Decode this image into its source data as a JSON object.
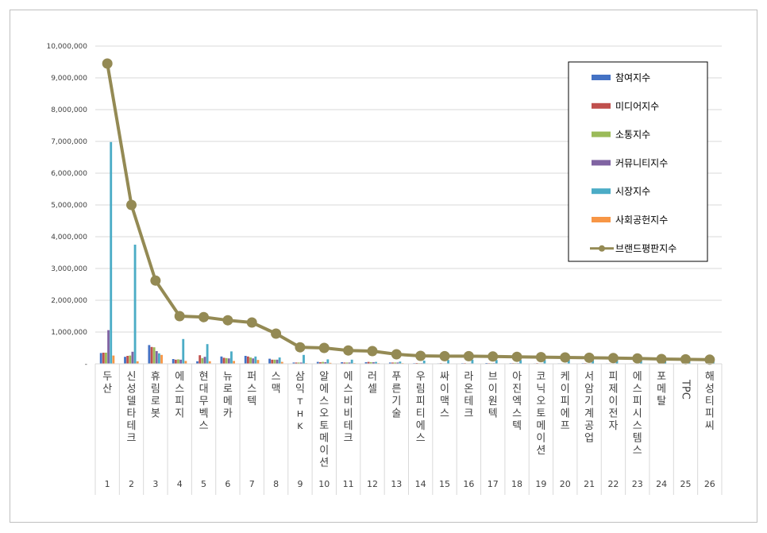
{
  "chart_data": {
    "type": "bar",
    "title": "",
    "xlabel": "",
    "ylabel": "",
    "ylim": [
      0,
      10000000
    ],
    "yticks": [
      "-",
      "1,000,000",
      "2,000,000",
      "3,000,000",
      "4,000,000",
      "5,000,000",
      "6,000,000",
      "7,000,000",
      "8,000,000",
      "9,000,000",
      "10,000,000"
    ],
    "grid": true,
    "legend_position": "top-right",
    "categories": [
      "두산",
      "신성델타테크",
      "휴림로봇",
      "에스피지",
      "현대무벡스",
      "뉴로메카",
      "퍼스텍",
      "스맥",
      "삼익THK",
      "알에스오토메이션",
      "에스비비테크",
      "러셀",
      "푸른기술",
      "우림피티에스",
      "싸이맥스",
      "라온테크",
      "브이원텍",
      "아진엑스텍",
      "코닉오토메이션",
      "케이피에프",
      "서암기계공업",
      "피제이전자",
      "에스피시스템스",
      "포메탈",
      "TPC",
      "해성티피씨"
    ],
    "category_labels": [
      "두산",
      "신성델타테크",
      "휴림로봇",
      "에스피지",
      "현대무벡스",
      "뉴로메카",
      "퍼스텍",
      "스맥",
      "삼익ᴛʜᴋ",
      "알에스오토메이션",
      "에스비비테크",
      "러셀",
      "푸른기술",
      "우림피티에스",
      "싸이맥스",
      "라온테크",
      "브이원텍",
      "아진엑스텍",
      "코닉오토메이션",
      "케이피에프",
      "서암기계공업",
      "피제이전자",
      "에스피시스템스",
      "포메탈",
      "TPC",
      "해성티피씨"
    ],
    "ranks": [
      "1",
      "2",
      "3",
      "4",
      "5",
      "6",
      "7",
      "8",
      "9",
      "10",
      "11",
      "12",
      "13",
      "14",
      "15",
      "16",
      "17",
      "18",
      "19",
      "20",
      "21",
      "22",
      "23",
      "24",
      "25",
      "26"
    ],
    "series": [
      {
        "name": "참여지수",
        "kind": "bar",
        "color": "#4472c4",
        "values": [
          340000,
          220000,
          590000,
          150000,
          80000,
          230000,
          250000,
          160000,
          40000,
          60000,
          50000,
          50000,
          40000,
          20000,
          15000,
          20000,
          25000,
          20000,
          15000,
          15000,
          20000,
          15000,
          15000,
          10000,
          10000,
          10000
        ]
      },
      {
        "name": "미디어지수",
        "kind": "bar",
        "color": "#c0504d",
        "values": [
          350000,
          250000,
          530000,
          130000,
          270000,
          190000,
          230000,
          130000,
          40000,
          50000,
          40000,
          60000,
          40000,
          25000,
          20000,
          20000,
          20000,
          20000,
          20000,
          15000,
          20000,
          15000,
          15000,
          10000,
          10000,
          10000
        ]
      },
      {
        "name": "소통지수",
        "kind": "bar",
        "color": "#9bbb59",
        "values": [
          350000,
          260000,
          520000,
          140000,
          180000,
          180000,
          200000,
          130000,
          40000,
          60000,
          40000,
          50000,
          40000,
          20000,
          15000,
          15000,
          20000,
          20000,
          15000,
          15000,
          15000,
          15000,
          15000,
          10000,
          10000,
          10000
        ]
      },
      {
        "name": "커뮤니티지수",
        "kind": "bar",
        "color": "#8064a2",
        "values": [
          1060000,
          380000,
          400000,
          130000,
          220000,
          170000,
          170000,
          130000,
          40000,
          50000,
          40000,
          50000,
          40000,
          20000,
          15000,
          15000,
          20000,
          20000,
          15000,
          15000,
          15000,
          15000,
          15000,
          10000,
          10000,
          10000
        ]
      },
      {
        "name": "시장지수",
        "kind": "bar",
        "color": "#4bacc6",
        "values": [
          6980000,
          3750000,
          330000,
          780000,
          620000,
          390000,
          230000,
          200000,
          280000,
          140000,
          130000,
          60000,
          70000,
          100000,
          120000,
          130000,
          120000,
          120000,
          120000,
          130000,
          110000,
          120000,
          100000,
          80000,
          70000,
          90000
        ]
      },
      {
        "name": "사회공헌지수",
        "kind": "bar",
        "color": "#f79646",
        "values": [
          260000,
          80000,
          280000,
          90000,
          80000,
          90000,
          120000,
          60000,
          20000,
          30000,
          20000,
          20000,
          20000,
          15000,
          10000,
          10000,
          10000,
          10000,
          10000,
          10000,
          10000,
          10000,
          10000,
          10000,
          10000,
          10000
        ]
      },
      {
        "name": "브랜드평판지수",
        "kind": "line",
        "color": "#948a54",
        "values": [
          9450000,
          5000000,
          2620000,
          1500000,
          1470000,
          1370000,
          1300000,
          950000,
          520000,
          500000,
          420000,
          400000,
          300000,
          250000,
          240000,
          240000,
          230000,
          220000,
          210000,
          200000,
          190000,
          180000,
          170000,
          150000,
          140000,
          130000
        ]
      }
    ]
  }
}
